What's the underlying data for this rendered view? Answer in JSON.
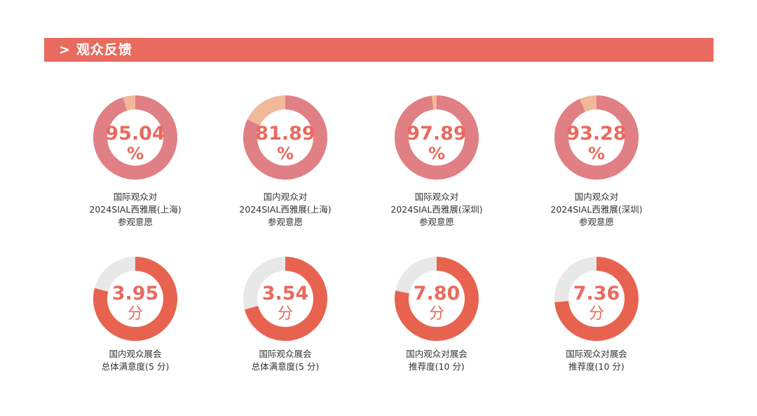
{
  "header": {
    "arrow": ">",
    "title": "观众反馈"
  },
  "chart_data": [
    {
      "type": "pie",
      "value": 95.04,
      "max": 100,
      "value_text": "95.04",
      "unit": "%",
      "caption": [
        "国际观众对",
        "2024SIAL西雅展(上海)",
        "参观意愿"
      ]
    },
    {
      "type": "pie",
      "value": 81.89,
      "max": 100,
      "value_text": "81.89",
      "unit": "%",
      "caption": [
        "国内观众对",
        "2024SIAL西雅展(上海)",
        "参观意愿"
      ]
    },
    {
      "type": "pie",
      "value": 97.89,
      "max": 100,
      "value_text": "97.89",
      "unit": "%",
      "caption": [
        "国际观众对",
        "2024SIAL西雅展(深圳)",
        "参观意愿"
      ]
    },
    {
      "type": "pie",
      "value": 93.28,
      "max": 100,
      "value_text": "93.28",
      "unit": "%",
      "caption": [
        "国内观众对",
        "2024SIAL西雅展(深圳)",
        "参观意愿"
      ]
    },
    {
      "type": "pie",
      "value": 3.95,
      "max": 5,
      "value_text": "3.95",
      "unit": "分",
      "caption": [
        "国内观众展会",
        "总体满意度(5 分)"
      ]
    },
    {
      "type": "pie",
      "value": 3.54,
      "max": 5,
      "value_text": "3.54",
      "unit": "分",
      "caption": [
        "国际观众展会",
        "总体满意度(5 分)"
      ]
    },
    {
      "type": "pie",
      "value": 7.8,
      "max": 10,
      "value_text": "7.80",
      "unit": "分",
      "caption": [
        "国内观众对展会",
        "推荐度(10 分)"
      ]
    },
    {
      "type": "pie",
      "value": 7.36,
      "max": 10,
      "value_text": "7.36",
      "unit": "分",
      "caption": [
        "国际观众对展会",
        "推荐度(10 分)"
      ]
    }
  ],
  "colors": {
    "accent": "#e96a5e",
    "percent_fill": "#e07f84",
    "percent_rest": "#f2b89a",
    "score_fill": "#e8634f",
    "score_rest": "#e8e8e8"
  }
}
